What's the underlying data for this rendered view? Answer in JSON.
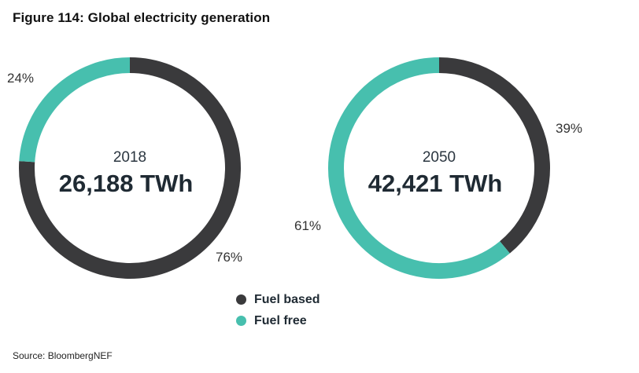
{
  "title": "Figure 114: Global electricity generation",
  "source": "Source: BloombergNEF",
  "colors": {
    "fuel_based": "#3a3a3c",
    "fuel_free": "#47bfae"
  },
  "legend": [
    {
      "label": "Fuel based",
      "color_key": "fuel_based"
    },
    {
      "label": "Fuel free",
      "color_key": "fuel_free"
    }
  ],
  "chart_data": [
    {
      "type": "pie",
      "style": "donut",
      "center_year": "2018",
      "center_total": "26,188 TWh",
      "slices": [
        {
          "name": "Fuel based",
          "value": 76,
          "label": "76%"
        },
        {
          "name": "Fuel free",
          "value": 24,
          "label": "24%"
        }
      ]
    },
    {
      "type": "pie",
      "style": "donut",
      "center_year": "2050",
      "center_total": "42,421 TWh",
      "slices": [
        {
          "name": "Fuel based",
          "value": 39,
          "label": "39%"
        },
        {
          "name": "Fuel free",
          "value": 61,
          "label": "61%"
        }
      ]
    }
  ]
}
